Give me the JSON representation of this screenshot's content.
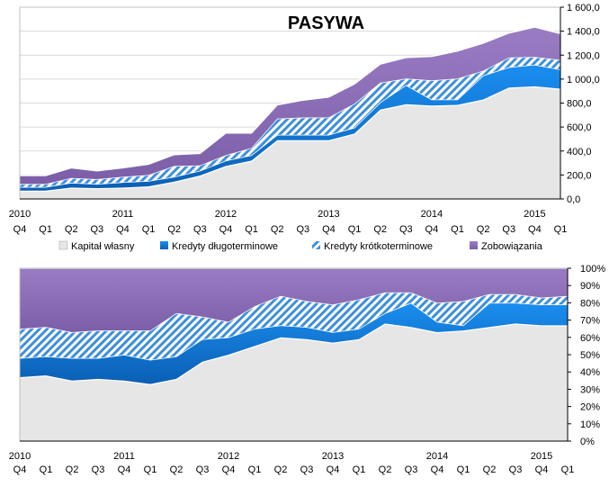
{
  "chart_data": [
    {
      "type": "area",
      "stacked": true,
      "title": "PASYWA",
      "x": [
        "Q4",
        "Q1",
        "Q2",
        "Q3",
        "Q4",
        "Q1",
        "Q2",
        "Q3",
        "Q4",
        "Q1",
        "Q2",
        "Q3",
        "Q4",
        "Q1",
        "Q2",
        "Q3",
        "Q4",
        "Q1",
        "Q2",
        "Q3",
        "Q4",
        "Q1"
      ],
      "year_labels": [
        {
          "label": "2010",
          "at_index": 0
        },
        {
          "label": "2011",
          "at_index": 4
        },
        {
          "label": "2012",
          "at_index": 8
        },
        {
          "label": "2013",
          "at_index": 12
        },
        {
          "label": "2014",
          "at_index": 16
        },
        {
          "label": "2015",
          "at_index": 20
        }
      ],
      "y_ticks": [
        "0,0",
        "200,0",
        "400,0",
        "600,0",
        "800,0",
        "1 000,0",
        "1 200,0",
        "1 400,0",
        "1 600,0"
      ],
      "ylim": [
        0,
        1600
      ],
      "y_axis_side": "right",
      "series": [
        {
          "name": "Kapitał własny",
          "color": "#e6e6e6",
          "pattern": "solid",
          "values": [
            70,
            70,
            95,
            90,
            95,
            105,
            145,
            195,
            275,
            320,
            490,
            490,
            490,
            545,
            745,
            790,
            780,
            785,
            830,
            930,
            940,
            920
          ]
        },
        {
          "name": "Kredyty długoterminowe",
          "color": "#1f7fd6",
          "pattern": "solid",
          "values": [
            30,
            30,
            40,
            35,
            45,
            45,
            40,
            40,
            45,
            45,
            45,
            45,
            45,
            50,
            60,
            160,
            50,
            45,
            200,
            170,
            180,
            160
          ]
        },
        {
          "name": "Kredyty krótkoterminowe",
          "color": "#3d8fd9",
          "pattern": "hatch",
          "values": [
            25,
            25,
            40,
            40,
            45,
            50,
            90,
            45,
            45,
            60,
            135,
            145,
            145,
            200,
            165,
            55,
            160,
            175,
            40,
            80,
            65,
            80
          ]
        },
        {
          "name": "Zobowiązania",
          "color": "#8e6fb5",
          "pattern": "solid",
          "values": [
            70,
            70,
            85,
            70,
            75,
            90,
            95,
            100,
            185,
            125,
            115,
            145,
            170,
            165,
            155,
            175,
            200,
            230,
            230,
            205,
            250,
            220
          ]
        }
      ],
      "legend_position": "bottom"
    },
    {
      "type": "area",
      "stacked": true,
      "percent": true,
      "x": [
        "Q4",
        "Q1",
        "Q2",
        "Q3",
        "Q4",
        "Q1",
        "Q2",
        "Q3",
        "Q4",
        "Q1",
        "Q2",
        "Q3",
        "Q4",
        "Q1",
        "Q2",
        "Q3",
        "Q4",
        "Q1",
        "Q2",
        "Q3",
        "Q4",
        "Q1"
      ],
      "year_labels": [
        {
          "label": "2010",
          "at_index": 0
        },
        {
          "label": "2011",
          "at_index": 4
        },
        {
          "label": "2012",
          "at_index": 8
        },
        {
          "label": "2013",
          "at_index": 12
        },
        {
          "label": "2014",
          "at_index": 16
        },
        {
          "label": "2015",
          "at_index": 20
        }
      ],
      "y_ticks": [
        "0%",
        "10%",
        "20%",
        "30%",
        "40%",
        "50%",
        "60%",
        "70%",
        "80%",
        "90%",
        "100%"
      ],
      "ylim": [
        0,
        100
      ],
      "y_axis_side": "right",
      "series": [
        {
          "name": "Kapitał własny",
          "values": [
            37,
            38,
            35,
            36,
            35,
            33,
            36,
            46,
            50,
            55,
            60,
            59,
            57,
            59,
            68,
            66,
            63,
            64,
            66,
            68,
            67,
            67
          ]
        },
        {
          "name": "Kredyty długoterminowe",
          "values": [
            11,
            11,
            13,
            12,
            15,
            14,
            13,
            13,
            10,
            10,
            7,
            7,
            6,
            6,
            6,
            14,
            6,
            3,
            14,
            12,
            12,
            12
          ]
        },
        {
          "name": "Kredyty krótkoterminowe",
          "values": [
            17,
            17,
            15,
            16,
            14,
            17,
            25,
            13,
            9,
            13,
            17,
            15,
            16,
            17,
            12,
            6,
            11,
            14,
            5,
            5,
            4,
            5
          ]
        },
        {
          "name": "Zobowiązania",
          "values": [
            35,
            34,
            37,
            36,
            36,
            36,
            26,
            28,
            31,
            22,
            16,
            19,
            21,
            18,
            14,
            14,
            20,
            19,
            15,
            15,
            17,
            16
          ]
        }
      ]
    }
  ]
}
